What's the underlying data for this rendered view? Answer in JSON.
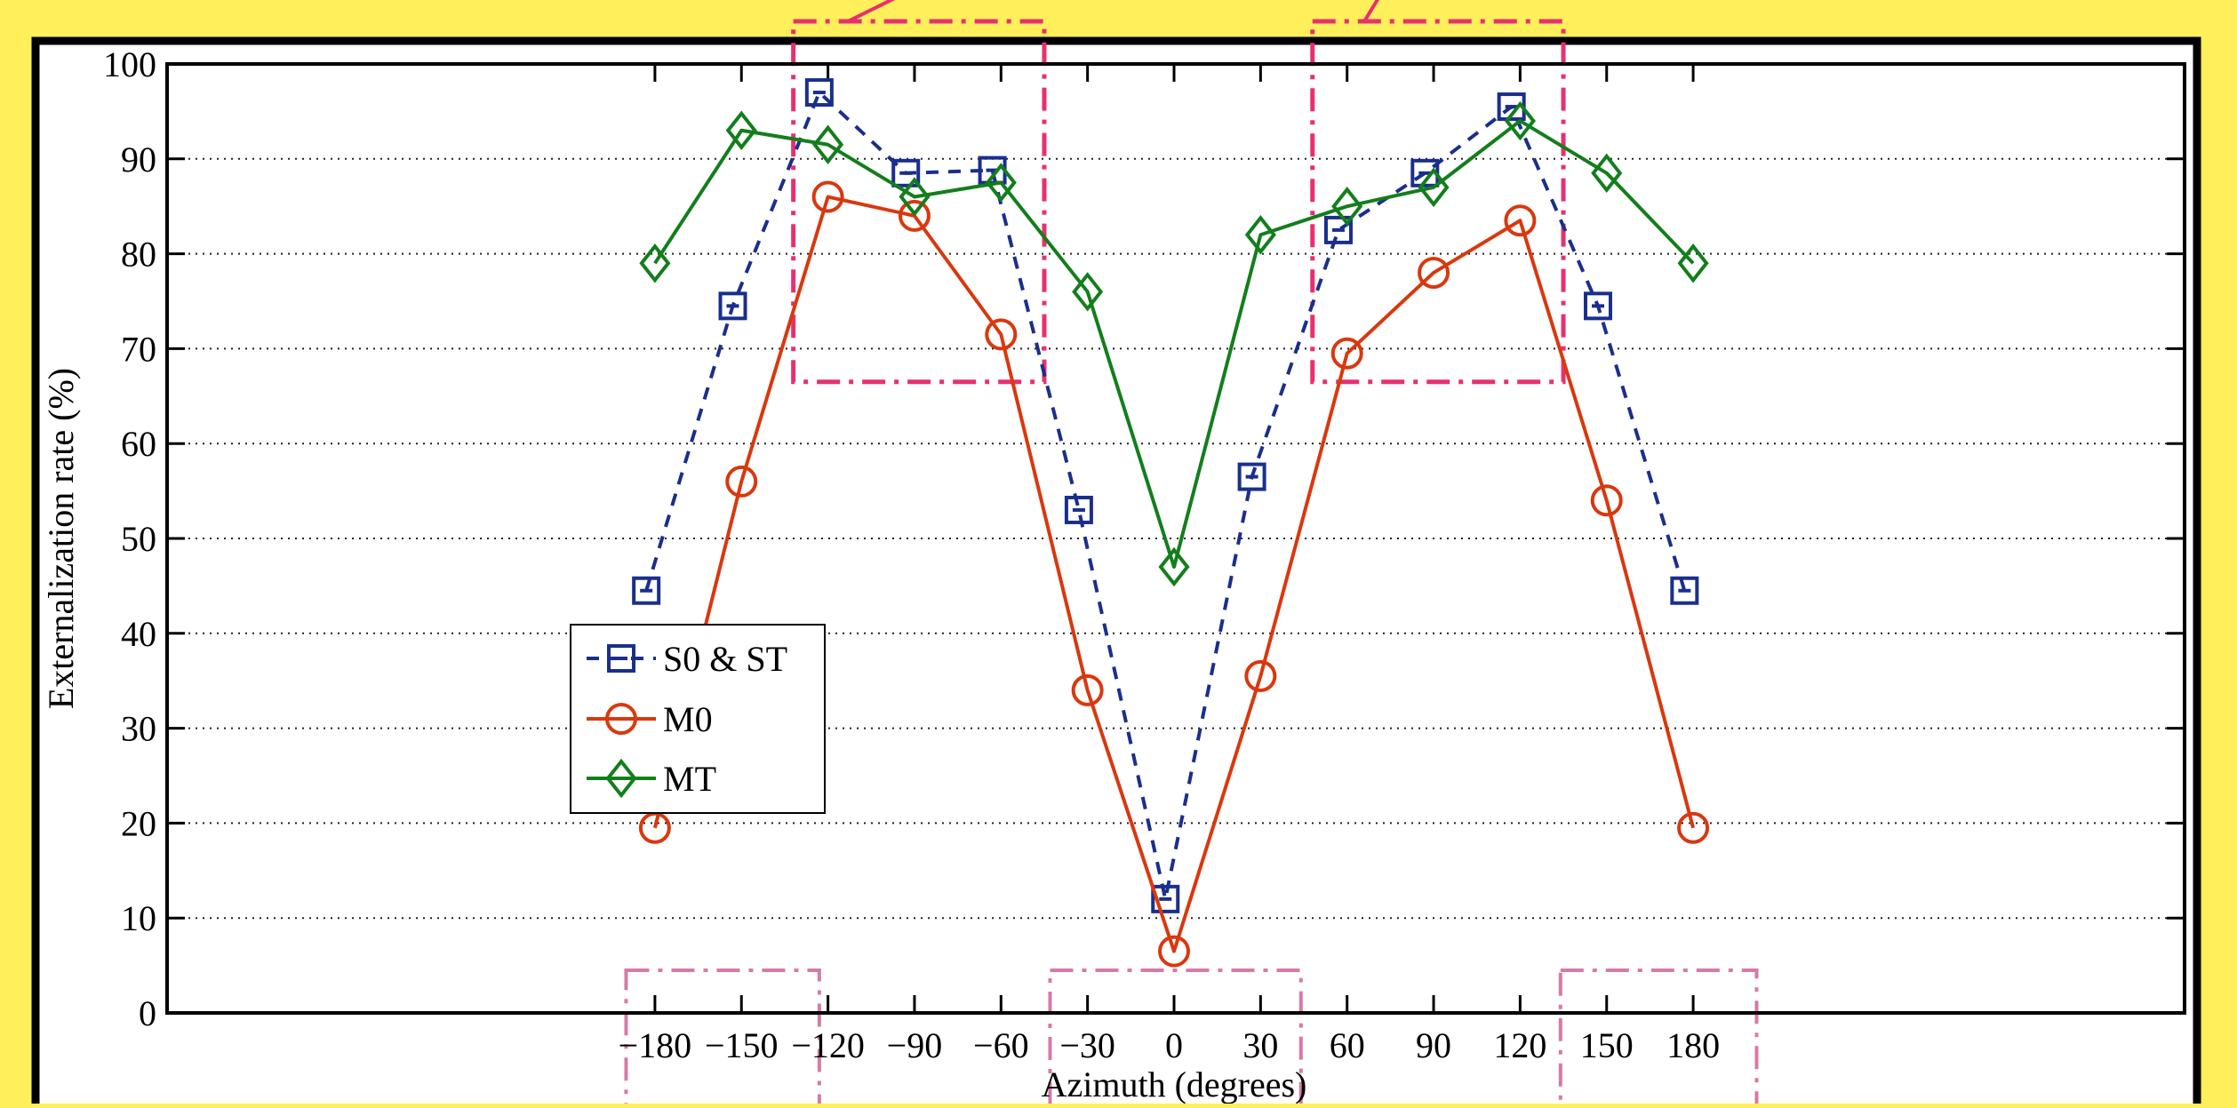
{
  "colors": {
    "background": "#ffef5a",
    "panel": "#ffffff",
    "highlight_box": "#e8306e",
    "faint_box": "#d77aa6",
    "series_S0": "#1a2f8c",
    "series_M0": "#d9380e",
    "series_MT": "#137e1c"
  },
  "chart_data": {
    "type": "line",
    "title": "",
    "xlabel": "Azimuth (degrees)",
    "ylabel": "Externalization rate (%)",
    "xlim": [
      -200,
      200
    ],
    "ylim": [
      0,
      100
    ],
    "x_ticks": [
      -180,
      -150,
      -120,
      -90,
      -60,
      -30,
      0,
      30,
      60,
      90,
      120,
      150,
      180
    ],
    "x_tick_labels": [
      "−180",
      "−150",
      "−120",
      "−90",
      "−60",
      "−30",
      "0",
      "30",
      "60",
      "90",
      "120",
      "150",
      "180"
    ],
    "y_ticks": [
      0,
      10,
      20,
      30,
      40,
      50,
      60,
      70,
      80,
      90,
      100
    ],
    "y_tick_labels": [
      "0",
      "10",
      "20",
      "30",
      "40",
      "50",
      "60",
      "70",
      "80",
      "90",
      "100"
    ],
    "grid": "horizontal dotted",
    "legend_position": "middle-left",
    "series": [
      {
        "name": "S0 & ST",
        "marker": "square",
        "line": "dashed",
        "color": "#1a2f8c",
        "x": [
          -183,
          -153,
          -123,
          -93,
          -63,
          -33,
          -3,
          27,
          57,
          87,
          117,
          147,
          177
        ],
        "y": [
          44.5,
          74.5,
          97,
          88.5,
          88.8,
          53,
          12,
          56.5,
          82.5,
          88.5,
          95.5,
          74.5,
          44.5
        ]
      },
      {
        "name": "M0",
        "marker": "circle",
        "line": "solid",
        "color": "#d9380e",
        "x": [
          -180,
          -150,
          -120,
          -90,
          -60,
          -30,
          0,
          30,
          60,
          90,
          120,
          150,
          180
        ],
        "y": [
          19.5,
          56,
          86,
          84,
          71.5,
          34,
          6.5,
          35.5,
          69.5,
          78,
          83.5,
          54,
          19.5
        ]
      },
      {
        "name": "MT",
        "marker": "diamond",
        "line": "solid",
        "color": "#137e1c",
        "x": [
          -180,
          -150,
          -120,
          -90,
          -60,
          -30,
          0,
          30,
          60,
          90,
          120,
          150,
          180
        ],
        "y": [
          79,
          93,
          91.5,
          86,
          87.5,
          76,
          47,
          82,
          85,
          87,
          94,
          88.5,
          79
        ]
      }
    ],
    "annotations": [
      {
        "kind": "highlight-box",
        "style": "dash-dot",
        "x_range": [
          -132,
          -45
        ],
        "y_range": [
          66.5,
          104.5
        ]
      },
      {
        "kind": "highlight-box",
        "style": "dash-dot",
        "x_range": [
          48,
          135
        ],
        "y_range": [
          66.5,
          104.5
        ]
      },
      {
        "kind": "faint-box",
        "style": "dash-dot",
        "x_range": [
          -190,
          -123
        ],
        "y_range": [
          -12,
          4.5
        ]
      },
      {
        "kind": "faint-box",
        "style": "dash-dot",
        "x_range": [
          -43,
          44
        ],
        "y_range": [
          -12,
          4.5
        ]
      },
      {
        "kind": "faint-box",
        "style": "dash-dot",
        "x_range": [
          134,
          202
        ],
        "y_range": [
          -12,
          4.5
        ]
      }
    ]
  }
}
